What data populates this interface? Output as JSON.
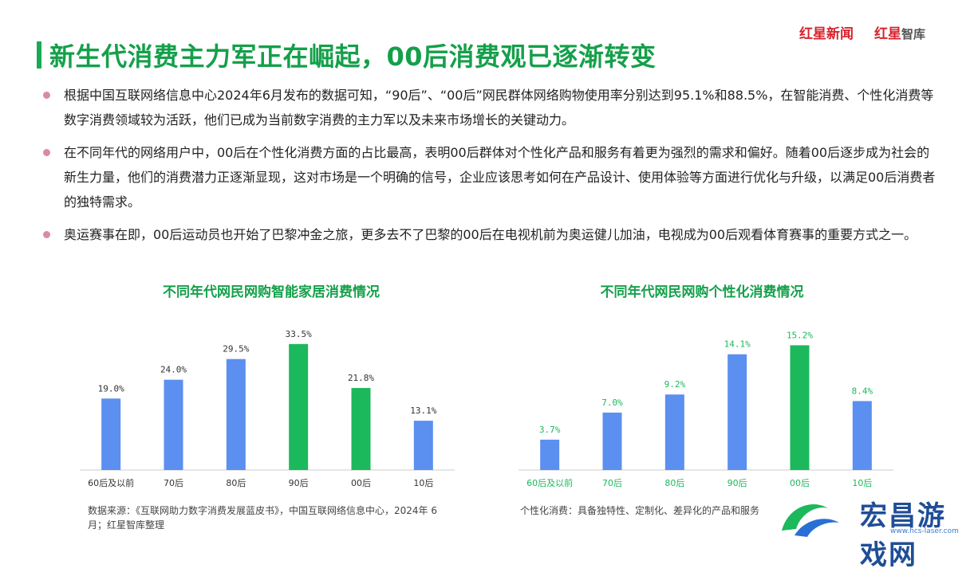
{
  "header": {
    "title": "新生代消费主力军正在崛起，00后消费观已逐渐转变",
    "brand1": "红星新闻",
    "brand2_red": "红星",
    "brand2_gray": "智库"
  },
  "bullets": [
    "根据中国互联网络信息中心2024年6月发布的数据可知，“90后”、“00后”网民群体网络购物使用率分别达到95.1%和88.5%，在智能消费、个性化消费等数字消费领域较为活跃，他们已成为当前数字消费的主力军以及未来市场增长的关键动力。",
    "在不同年代的网络用户中，00后在个性化消费方面的占比最高，表明00后群体对个性化产品和服务有着更为强烈的需求和偏好。随着00后逐步成为社会的新生力量，他们的消费潜力正逐渐显现，这对市场是一个明确的信号，企业应该思考如何在产品设计、使用体验等方面进行优化与升级，以满足00后消费者的独特需求。",
    "奥运赛事在即，00后运动员也开始了巴黎冲金之旅，更多去不了巴黎的00后在电视机前为奥运健儿加油，电视成为00后观看体育赛事的重要方式之一。"
  ],
  "chart_data": [
    {
      "type": "bar",
      "title": "不同年代网民网购智能家居消费情况",
      "categories": [
        "60后及以前",
        "70后",
        "80后",
        "90后",
        "00后",
        "10后"
      ],
      "values": [
        19.0,
        24.0,
        29.5,
        33.5,
        21.8,
        13.1
      ],
      "value_labels": [
        "19.0%",
        "24.0%",
        "29.5%",
        "33.5%",
        "21.8%",
        "13.1%"
      ],
      "ylim": [
        0,
        36
      ],
      "grid": false,
      "colors": [
        "#5b8ff0",
        "#5b8ff0",
        "#5b8ff0",
        "#1cb85c",
        "#1cb85c",
        "#5b8ff0"
      ],
      "label_color": "#333333",
      "tick_color": "#333333",
      "note": "数据来源：《互联网助力数字消费发展蓝皮书》，中国互联网络信息中心，2024年 6 月；红星智库整理"
    },
    {
      "type": "bar",
      "title": "不同年代网民网购个性化消费情况",
      "categories": [
        "60后及以前",
        "70后",
        "80后",
        "90后",
        "00后",
        "10后"
      ],
      "values": [
        3.7,
        7.0,
        9.2,
        14.1,
        15.2,
        8.4
      ],
      "value_labels": [
        "3.7%",
        "7.0%",
        "9.2%",
        "14.1%",
        "15.2%",
        "8.4%"
      ],
      "ylim": [
        0,
        16.5
      ],
      "grid": false,
      "colors": [
        "#5b8ff0",
        "#5b8ff0",
        "#5b8ff0",
        "#5b8ff0",
        "#1cb85c",
        "#5b8ff0"
      ],
      "label_color": "#1cb85c",
      "tick_color": "#1cb85c",
      "note": "个性化消费：具备独特性、定制化、差异化的产品和服务"
    }
  ],
  "watermark": {
    "text": "宏昌游戏网",
    "url": "www.hcs-laser.com"
  }
}
